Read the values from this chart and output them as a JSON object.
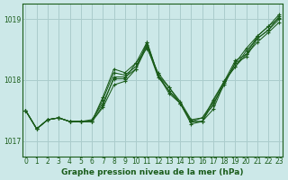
{
  "title": "Graphe pression niveau de la mer (hPa)",
  "background_color": "#cce8e8",
  "grid_color": "#aacccc",
  "line_color": "#1a5c1a",
  "xlim": [
    -0.3,
    23.3
  ],
  "ylim": [
    1016.75,
    1019.25
  ],
  "yticks": [
    1017,
    1018,
    1019
  ],
  "xticks": [
    0,
    1,
    2,
    3,
    4,
    5,
    6,
    7,
    8,
    9,
    10,
    11,
    12,
    13,
    14,
    15,
    16,
    17,
    18,
    19,
    20,
    21,
    22,
    23
  ],
  "series": [
    [
      1017.5,
      1017.2,
      1017.35,
      1017.38,
      1017.32,
      1017.32,
      1017.32,
      1017.58,
      1018.05,
      1018.05,
      1018.18,
      1018.55,
      1018.05,
      1017.82,
      1017.62,
      1017.32,
      1017.32,
      1017.52,
      1017.95,
      1018.28,
      1018.52,
      1018.72,
      1018.88,
      1019.02
    ],
    [
      1017.5,
      1017.2,
      1017.35,
      1017.38,
      1017.32,
      1017.32,
      1017.32,
      1017.55,
      1017.92,
      1017.98,
      1018.18,
      1018.62,
      1018.08,
      1017.78,
      1017.62,
      1017.32,
      1017.32,
      1017.68,
      1017.98,
      1018.22,
      1018.42,
      1018.62,
      1018.78,
      1018.95
    ],
    [
      1017.5,
      1017.2,
      1017.35,
      1017.38,
      1017.32,
      1017.32,
      1017.32,
      1017.68,
      1018.12,
      1018.08,
      1018.22,
      1018.58,
      1018.08,
      1017.82,
      1017.62,
      1017.28,
      1017.32,
      1017.62,
      1017.92,
      1018.28,
      1018.38,
      1018.68,
      1018.82,
      1019.05
    ],
    [
      1017.5,
      1017.2,
      1017.35,
      1017.38,
      1017.32,
      1017.32,
      1017.35,
      1017.62,
      1018.02,
      1018.02,
      1018.28,
      1018.62,
      1018.08,
      1017.88,
      1017.62,
      1017.32,
      1017.38,
      1017.58,
      1017.98,
      1018.22,
      1018.48,
      1018.68,
      1018.82,
      1019.0
    ],
    [
      1017.5,
      1017.2,
      1017.35,
      1017.38,
      1017.32,
      1017.32,
      1017.32,
      1017.72,
      1018.18,
      1018.12,
      1018.28,
      1018.52,
      1018.12,
      1017.88,
      1017.65,
      1017.35,
      1017.38,
      1017.65,
      1017.98,
      1018.32,
      1018.42,
      1018.72,
      1018.88,
      1019.08
    ]
  ]
}
